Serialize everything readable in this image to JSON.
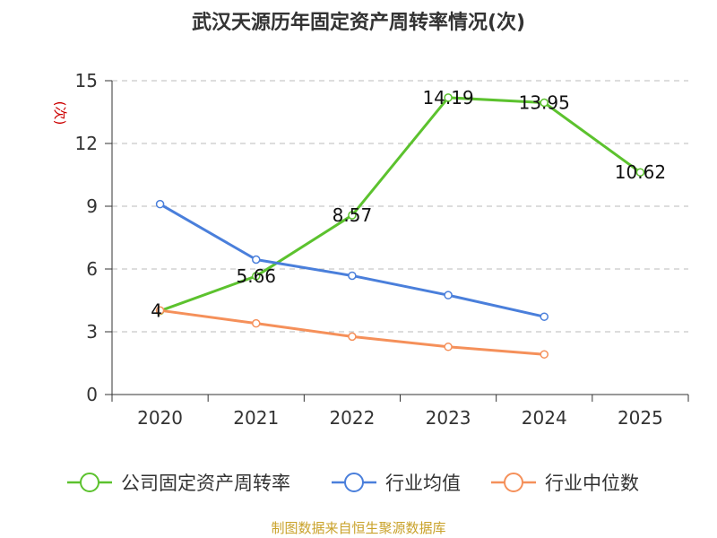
{
  "chart_data": {
    "type": "line",
    "title": "武汉天源历年固定资产周转率情况(次)",
    "ylabel": "(次)",
    "xlabel": "",
    "ylim": [
      0,
      15
    ],
    "yticks": [
      "0",
      "3",
      "6",
      "9",
      "12",
      "15"
    ],
    "ytick_values": [
      0,
      3,
      6,
      9,
      12,
      15
    ],
    "categories": [
      "2020",
      "2021",
      "2022",
      "2023",
      "2024",
      "2025"
    ],
    "grid": true,
    "legend_position": "bottom",
    "series": [
      {
        "name": "公司固定资产周转率",
        "color": "#5cc22e",
        "values": [
          4,
          5.66,
          8.57,
          14.19,
          13.95,
          10.62
        ],
        "labels": [
          "4",
          "5.66",
          "8.57",
          "14.19",
          "13.95",
          "10.62"
        ]
      },
      {
        "name": "行业均值",
        "color": "#4a7fdb",
        "values": [
          9.1,
          6.45,
          5.68,
          4.75,
          3.72,
          null
        ]
      },
      {
        "name": "行业中位数",
        "color": "#f5905a",
        "values": [
          4.02,
          3.4,
          2.77,
          2.28,
          1.92,
          null
        ]
      }
    ],
    "source": "制图数据来自恒生聚源数据库"
  }
}
